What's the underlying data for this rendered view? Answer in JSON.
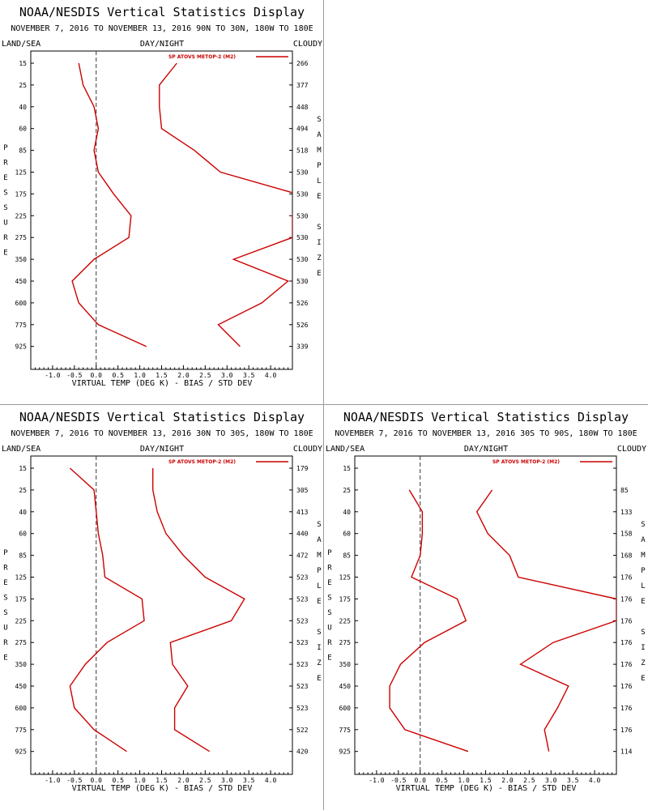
{
  "chart_data": [
    {
      "type": "line",
      "title": "NOAA/NESDIS Vertical Statistics Display",
      "subtitle": "NOVEMBER 7, 2016 TO NOVEMBER 13, 2016 90N TO 30N, 180W TO 180E",
      "header_left": "LAND/SEA",
      "header_center": "DAY/NIGHT",
      "header_right": "CLOUDY",
      "xlabel": "VIRTUAL TEMP (DEG K) - BIAS / STD DEV",
      "ylabel": "PRESSURE",
      "y2label": "SAMPLE SIZE",
      "x_ticks": [
        "-1.0",
        "-0.5",
        "0.0",
        "0.5",
        "1.0",
        "1.5",
        "2.0",
        "2.5",
        "3.0",
        "3.5",
        "4.0"
      ],
      "levels": [
        "15",
        "25",
        "40",
        "60",
        "85",
        "125",
        "175",
        "225",
        "275",
        "350",
        "450",
        "600",
        "775",
        "925"
      ],
      "sample_sizes": [
        "266",
        "377",
        "448",
        "494",
        "518",
        "530",
        "530",
        "530",
        "530",
        "530",
        "530",
        "526",
        "526",
        "339"
      ],
      "xlim": [
        -1.5,
        4.5
      ],
      "legend": "SP ATOVS METOP-2 (M2)",
      "line_color": "#cc0000",
      "series": [
        {
          "name": "bias",
          "values": [
            -0.4,
            -0.3,
            -0.05,
            0.05,
            -0.05,
            0.05,
            0.4,
            0.8,
            0.75,
            -0.05,
            -0.55,
            -0.4,
            0.05,
            1.15
          ]
        },
        {
          "name": "std dev",
          "values": [
            1.85,
            1.45,
            1.45,
            1.5,
            2.25,
            2.85,
            4.6,
            4.5,
            4.5,
            3.15,
            4.4,
            3.8,
            2.8,
            3.3
          ]
        }
      ]
    },
    {
      "type": "line",
      "title": "NOAA/NESDIS Vertical Statistics Display",
      "subtitle": "NOVEMBER 7, 2016 TO NOVEMBER 13, 2016 30N TO 30S, 180W TO 180E",
      "header_left": "LAND/SEA",
      "header_center": "DAY/NIGHT",
      "header_right": "CLOUDY",
      "xlabel": "VIRTUAL TEMP (DEG K) - BIAS / STD DEV",
      "ylabel": "PRESSURE",
      "y2label": "SAMPLE SIZE",
      "x_ticks": [
        "-1.0",
        "-0.5",
        "0.0",
        "0.5",
        "1.0",
        "1.5",
        "2.0",
        "2.5",
        "3.0",
        "3.5",
        "4.0"
      ],
      "levels": [
        "15",
        "25",
        "40",
        "60",
        "85",
        "125",
        "175",
        "225",
        "275",
        "350",
        "450",
        "600",
        "775",
        "925"
      ],
      "sample_sizes": [
        "179",
        "305",
        "413",
        "440",
        "472",
        "523",
        "523",
        "523",
        "523",
        "523",
        "523",
        "523",
        "522",
        "420"
      ],
      "xlim": [
        -1.5,
        4.5
      ],
      "legend": "SP ATOVS METOP-2 (M2)",
      "line_color": "#cc0000",
      "series": [
        {
          "name": "bias",
          "values": [
            -0.6,
            -0.05,
            0.0,
            0.05,
            0.15,
            0.2,
            1.05,
            1.1,
            0.25,
            -0.25,
            -0.6,
            -0.5,
            -0.05,
            0.7
          ]
        },
        {
          "name": "std dev",
          "values": [
            1.3,
            1.3,
            1.4,
            1.6,
            2.0,
            2.5,
            3.4,
            3.1,
            1.7,
            1.75,
            2.1,
            1.8,
            1.8,
            2.6
          ]
        }
      ]
    },
    {
      "type": "line",
      "title": "NOAA/NESDIS Vertical Statistics Display",
      "subtitle": "NOVEMBER 7, 2016 TO NOVEMBER 13, 2016 30S TO 90S, 180W TO 180E",
      "header_left": "LAND/SEA",
      "header_center": "DAY/NIGHT",
      "header_right": "CLOUDY",
      "xlabel": "VIRTUAL TEMP (DEG K) - BIAS / STD DEV",
      "ylabel": "PRESSURE",
      "y2label": "SAMPLE SIZE",
      "x_ticks": [
        "-1.0",
        "-0.5",
        "0.0",
        "0.5",
        "1.0",
        "1.5",
        "2.0",
        "2.5",
        "3.0",
        "3.5",
        "4.0"
      ],
      "levels": [
        "15",
        "25",
        "40",
        "60",
        "85",
        "125",
        "175",
        "225",
        "275",
        "350",
        "450",
        "600",
        "775",
        "925"
      ],
      "sample_sizes": [
        "",
        "85",
        "133",
        "158",
        "168",
        "176",
        "176",
        "176",
        "176",
        "176",
        "176",
        "176",
        "176",
        "114"
      ],
      "xlim": [
        -1.5,
        4.5
      ],
      "legend": "SP ATOVS METOP-2 (M2)",
      "line_color": "#cc0000",
      "series": [
        {
          "name": "bias",
          "values": [
            null,
            -0.25,
            0.05,
            0.05,
            0.0,
            -0.2,
            0.85,
            1.05,
            0.1,
            -0.45,
            -0.7,
            -0.7,
            -0.35,
            1.1
          ]
        },
        {
          "name": "std dev",
          "values": [
            null,
            1.65,
            1.3,
            1.55,
            2.05,
            2.25,
            4.5,
            4.5,
            3.05,
            2.3,
            3.4,
            3.15,
            2.85,
            2.95
          ]
        }
      ]
    }
  ]
}
